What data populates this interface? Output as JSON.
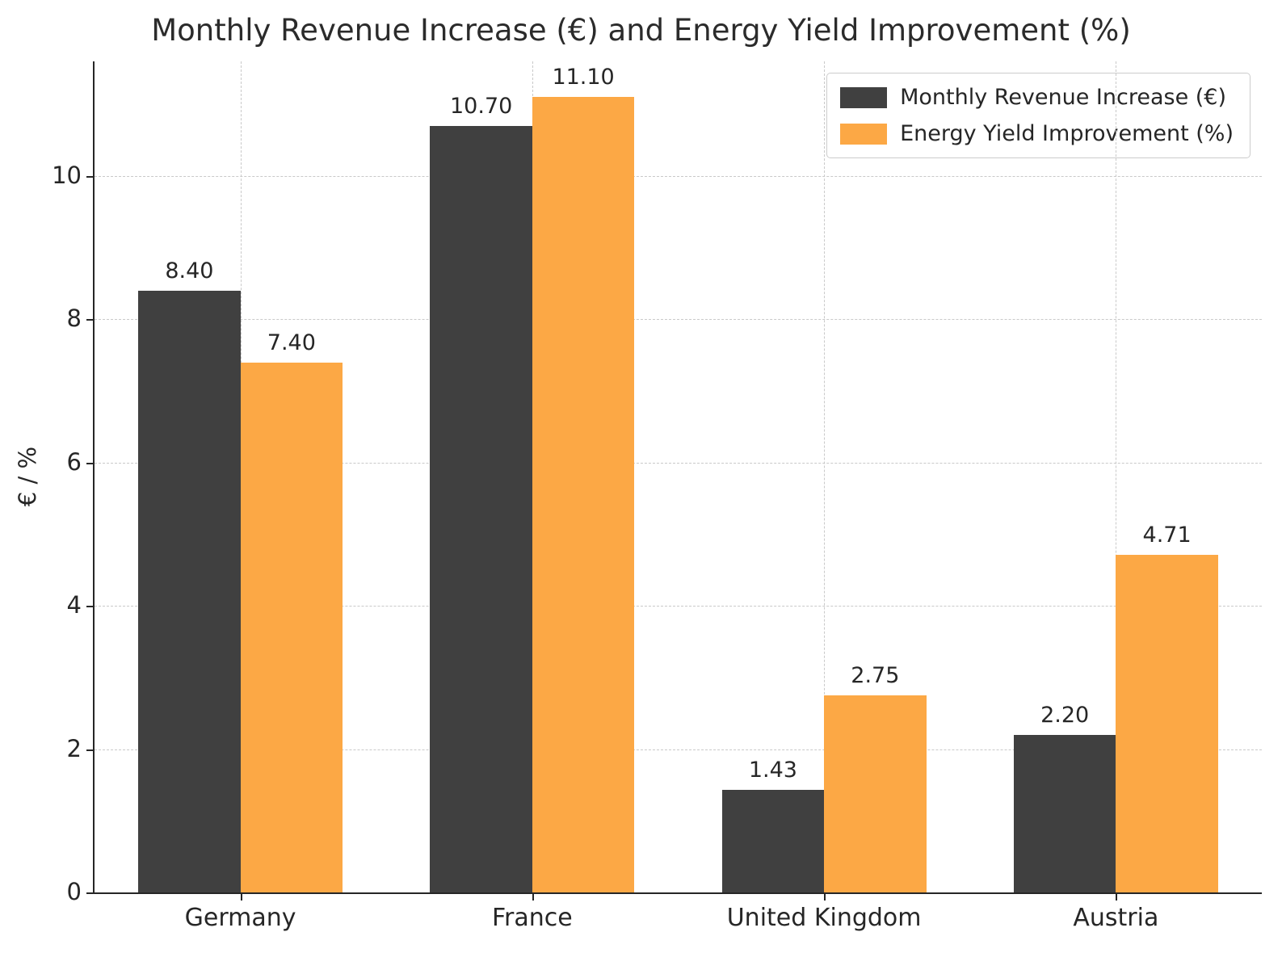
{
  "chart_data": {
    "type": "bar",
    "title": "Monthly Revenue Increase (€) and Energy Yield Improvement (%)",
    "ylabel": "€ / %",
    "xlabel": "",
    "categories": [
      "Germany",
      "France",
      "United Kingdom",
      "Austria"
    ],
    "series": [
      {
        "name": "Monthly Revenue Increase (€)",
        "color": "#404040",
        "values": [
          8.4,
          10.7,
          1.43,
          2.2
        ]
      },
      {
        "name": "Energy Yield Improvement (%)",
        "color": "#FCA845",
        "values": [
          7.4,
          11.1,
          2.75,
          4.71
        ]
      }
    ],
    "value_labels": [
      [
        "8.40",
        "10.70",
        "1.43",
        "2.20"
      ],
      [
        "7.40",
        "11.10",
        "2.75",
        "4.71"
      ]
    ],
    "yticks": [
      0,
      2,
      4,
      6,
      8,
      10
    ],
    "ylim": [
      0,
      11.6
    ],
    "grid": "dashed, horizontal and vertical",
    "legend_position": "top-right"
  }
}
